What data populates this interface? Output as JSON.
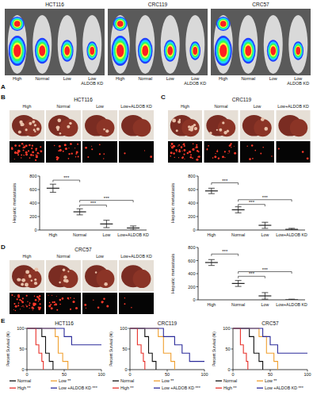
{
  "figure": {
    "panel_labels": [
      "A",
      "B",
      "C",
      "D",
      "E"
    ],
    "imaging": [
      {
        "title": "HCT116",
        "labels": [
          "High",
          "Normal",
          "Low",
          "Low ALDOB KD"
        ]
      },
      {
        "title": "CRC119",
        "labels": [
          "High",
          "Normal",
          "Low",
          "Low ALDOB KD"
        ]
      },
      {
        "title": "CRC57",
        "labels": [
          "High",
          "Normal",
          "Low",
          "Low ALDOB KD"
        ]
      }
    ],
    "livers": [
      {
        "title": "HCT116",
        "labels": [
          "High",
          "Normal",
          "Low",
          "Low+ALDOB KD"
        ]
      },
      {
        "title": "CRC119",
        "labels": [
          "High",
          "Normal",
          "Low",
          "Low+ALDOB KD"
        ]
      },
      {
        "title": "CRC57",
        "labels": [
          "High",
          "Normal",
          "Low",
          "Low+ALDOB KD"
        ]
      }
    ]
  },
  "chart_data": [
    {
      "type": "dot",
      "categories": [
        "High",
        "Normal",
        "Low",
        "Low+ALDOB KD"
      ],
      "values": [
        620,
        270,
        90,
        30
      ],
      "errors": [
        60,
        45,
        55,
        30
      ],
      "color": "#222222",
      "y_label": "Hepatic metastasis",
      "ylim": [
        0,
        800
      ],
      "yticks": [
        0,
        200,
        400,
        600,
        800
      ],
      "annotations": [
        {
          "from": 0,
          "to": 1,
          "y": 740,
          "label": "***"
        },
        {
          "from": 1,
          "to": 3,
          "y": 440,
          "label": "***"
        },
        {
          "from": 1,
          "to": 2,
          "y": 370,
          "label": "***"
        }
      ]
    },
    {
      "type": "dot",
      "categories": [
        "High",
        "Normal",
        "Low",
        "Low+ALDOB KD"
      ],
      "values": [
        580,
        300,
        70,
        10
      ],
      "errors": [
        40,
        45,
        45,
        15
      ],
      "color": "#222222",
      "y_label": "Hepatic metastasis",
      "ylim": [
        0,
        800
      ],
      "yticks": [
        0,
        200,
        400,
        600,
        800
      ],
      "annotations": [
        {
          "from": 0,
          "to": 1,
          "y": 700,
          "label": "***"
        },
        {
          "from": 1,
          "to": 3,
          "y": 450,
          "label": "***"
        },
        {
          "from": 1,
          "to": 2,
          "y": 380,
          "label": "***"
        }
      ]
    },
    {
      "type": "dot",
      "categories": [
        "High",
        "Normal",
        "Low",
        "Low+ALDOB KD"
      ],
      "values": [
        570,
        250,
        60,
        0
      ],
      "errors": [
        45,
        45,
        50,
        10
      ],
      "color": "#222222",
      "y_label": "Hepatic metastasis",
      "ylim": [
        0,
        800
      ],
      "yticks": [
        0,
        200,
        400,
        600,
        800
      ],
      "annotations": [
        {
          "from": 0,
          "to": 1,
          "y": 700,
          "label": "***"
        },
        {
          "from": 1,
          "to": 3,
          "y": 430,
          "label": "***"
        },
        {
          "from": 1,
          "to": 2,
          "y": 360,
          "label": "***"
        }
      ]
    },
    {
      "type": "line",
      "title": "HCT116",
      "y_label": "Percent Survival (%)",
      "xlim": [
        0,
        100
      ],
      "xticks": [
        0,
        50,
        100
      ],
      "ylim": [
        0,
        100
      ],
      "yticks": [
        0,
        50,
        100
      ],
      "legend": "bottom",
      "series": [
        {
          "name": "Normal",
          "color": "#111111",
          "x": [
            0,
            20,
            20,
            25,
            25,
            30,
            30,
            35,
            35
          ],
          "values": [
            100,
            100,
            80,
            80,
            40,
            40,
            20,
            20,
            0
          ]
        },
        {
          "name": "High **",
          "color": "#e8322b",
          "x": [
            0,
            12,
            12,
            16,
            16,
            20,
            20,
            22,
            22
          ],
          "values": [
            100,
            100,
            60,
            60,
            40,
            40,
            20,
            20,
            0
          ]
        },
        {
          "name": "Low **",
          "color": "#f0a030",
          "x": [
            0,
            38,
            38,
            42,
            42,
            48,
            48,
            55,
            55
          ],
          "values": [
            100,
            100,
            80,
            80,
            40,
            40,
            20,
            20,
            0
          ]
        },
        {
          "name": "Low +ALDOB KD ***",
          "color": "#2b2b9a",
          "x": [
            0,
            50,
            50,
            60,
            60,
            100
          ],
          "values": [
            100,
            100,
            80,
            80,
            60,
            60
          ]
        }
      ]
    },
    {
      "type": "line",
      "title": "CRC119",
      "y_label": "Percent Survival (%)",
      "xlim": [
        0,
        100
      ],
      "xticks": [
        0,
        50,
        100
      ],
      "ylim": [
        0,
        100
      ],
      "yticks": [
        0,
        50,
        100
      ],
      "legend": "bottom",
      "series": [
        {
          "name": "Normal",
          "color": "#111111",
          "x": [
            0,
            20,
            20,
            25,
            25,
            30,
            30,
            35,
            35
          ],
          "values": [
            100,
            100,
            80,
            80,
            40,
            40,
            20,
            20,
            0
          ]
        },
        {
          "name": "High **",
          "color": "#e8322b",
          "x": [
            0,
            10,
            10,
            15,
            15,
            18,
            18,
            20,
            20
          ],
          "values": [
            100,
            100,
            60,
            60,
            40,
            40,
            20,
            20,
            0
          ]
        },
        {
          "name": "Low **",
          "color": "#f0a030",
          "x": [
            0,
            38,
            38,
            45,
            45,
            55,
            55,
            60,
            60
          ],
          "values": [
            100,
            100,
            80,
            80,
            40,
            40,
            20,
            20,
            0
          ]
        },
        {
          "name": "Low +ALDOB KD ***",
          "color": "#2b2b9a",
          "x": [
            0,
            45,
            45,
            60,
            60,
            70,
            70,
            80,
            80,
            100
          ],
          "values": [
            100,
            100,
            80,
            80,
            60,
            60,
            40,
            40,
            20,
            20
          ]
        }
      ]
    },
    {
      "type": "line",
      "title": "CRC57",
      "y_label": "Percent Survival (%)",
      "xlim": [
        0,
        100
      ],
      "xticks": [
        0,
        50,
        100
      ],
      "ylim": [
        0,
        100
      ],
      "yticks": [
        0,
        50,
        100
      ],
      "legend": "bottom",
      "series": [
        {
          "name": "Normal",
          "color": "#111111",
          "x": [
            0,
            22,
            22,
            28,
            28,
            35,
            35,
            40,
            40
          ],
          "values": [
            100,
            100,
            80,
            80,
            40,
            40,
            20,
            20,
            0
          ]
        },
        {
          "name": "High **",
          "color": "#e8322b",
          "x": [
            0,
            10,
            10,
            14,
            14,
            18,
            18,
            20,
            20
          ],
          "values": [
            100,
            100,
            60,
            60,
            40,
            40,
            20,
            20,
            0
          ]
        },
        {
          "name": "Low **",
          "color": "#f0a030",
          "x": [
            0,
            35,
            35,
            45,
            45,
            55,
            55,
            60,
            60
          ],
          "values": [
            100,
            100,
            80,
            80,
            40,
            40,
            20,
            20,
            0
          ]
        },
        {
          "name": "Low +ALDOB KD ***",
          "color": "#2b2b9a",
          "x": [
            0,
            40,
            40,
            50,
            50,
            60,
            60,
            100
          ],
          "values": [
            100,
            100,
            80,
            80,
            60,
            60,
            40,
            40
          ]
        }
      ]
    }
  ]
}
